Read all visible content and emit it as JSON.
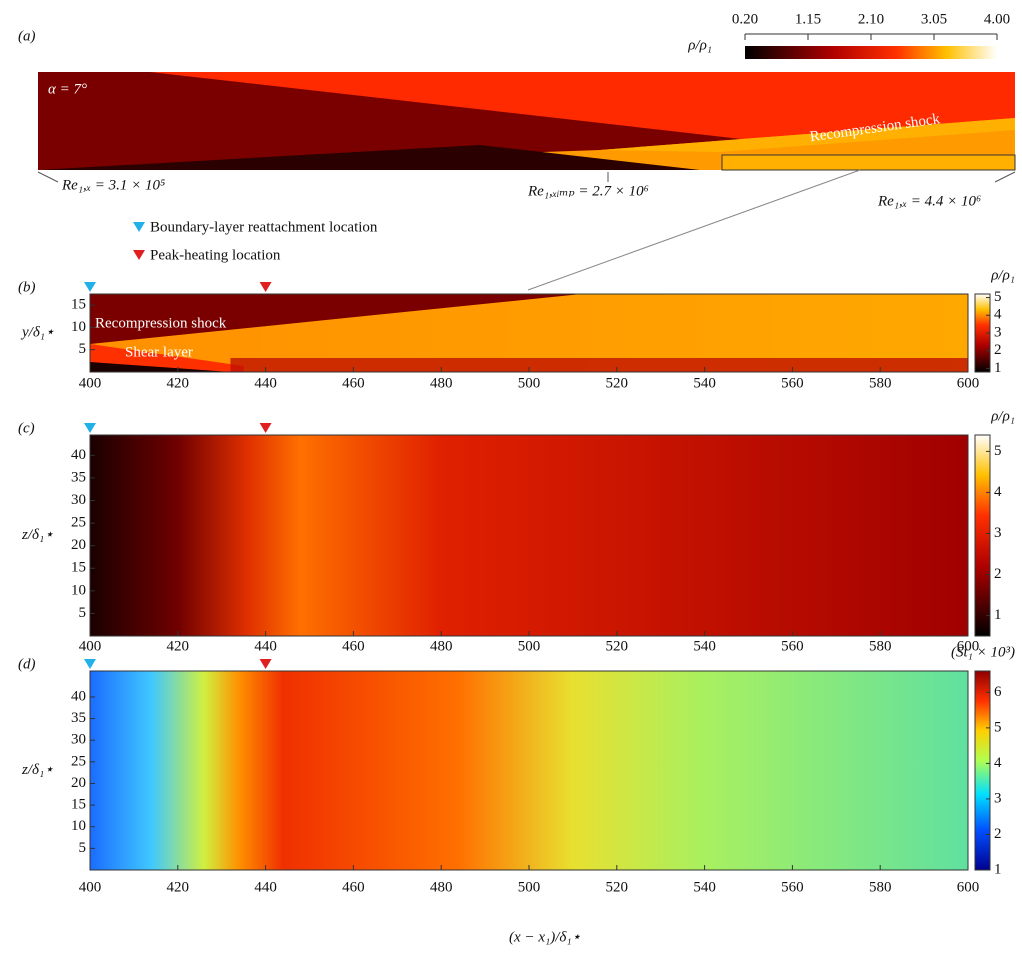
{
  "panel_a": {
    "label": "(a)",
    "angle": "α = 7°",
    "shock": "Recompression shock",
    "re_start": "Re₁,ₓ = 3.1 × 10⁵",
    "re_imp": "Re₁,ₓᵢₘₚ = 2.7 × 10⁶",
    "re_end": "Re₁,ₓ = 4.4 × 10⁶",
    "colorbar": {
      "label": "ρ/ρ₁",
      "lim": [
        0.2,
        4.0
      ],
      "ticks": [
        {
          "value": 0.2,
          "label": "0.20"
        },
        1.15,
        {
          "value": 2.1,
          "label": "2.10"
        },
        3.05,
        {
          "value": 4,
          "label": "4.00"
        }
      ]
    }
  },
  "legend": {
    "reattachment": "Boundary-layer reattachment location",
    "peak_heating": "Peak-heating location"
  },
  "locations": {
    "reattachment": 400,
    "peak_heating": 440
  },
  "panels": [
    {
      "label": "(b)",
      "ylabel": "y/δ₁⋆",
      "ylim": [
        0,
        17.5
      ],
      "yticks": [
        5,
        10,
        15
      ],
      "annotations": [
        "Recompression shock",
        "Shear layer"
      ],
      "colorbar": {
        "label": "ρ/ρ₁",
        "lim": [
          0.8,
          5.2
        ],
        "ticks": [
          1,
          2,
          3,
          4,
          5
        ]
      }
    },
    {
      "label": "(c)",
      "ylabel": "z/δ₁⋆",
      "ylim": [
        0,
        44.5
      ],
      "yticks": [
        5,
        10,
        15,
        20,
        25,
        30,
        35,
        40
      ],
      "colorbar": {
        "label": "ρ/ρ₁",
        "lim": [
          0.5,
          5.4
        ],
        "ticks": [
          1,
          2,
          3,
          4,
          5
        ]
      }
    },
    {
      "label": "(d)",
      "ylabel": "z/δ₁⋆",
      "ylim": [
        0,
        46
      ],
      "yticks": [
        5,
        10,
        15,
        20,
        25,
        30,
        35,
        40
      ],
      "colorbar": {
        "label": "(St₁ × 10³)",
        "lim": [
          1,
          6.6
        ],
        "ticks": [
          1,
          2,
          3,
          4,
          5,
          6
        ]
      }
    }
  ],
  "x_axis": {
    "label": "(x − x₁)/δ₁⋆",
    "lim": [
      400,
      600
    ],
    "ticks": [
      400,
      420,
      440,
      460,
      480,
      500,
      520,
      540,
      560,
      580,
      600
    ]
  }
}
